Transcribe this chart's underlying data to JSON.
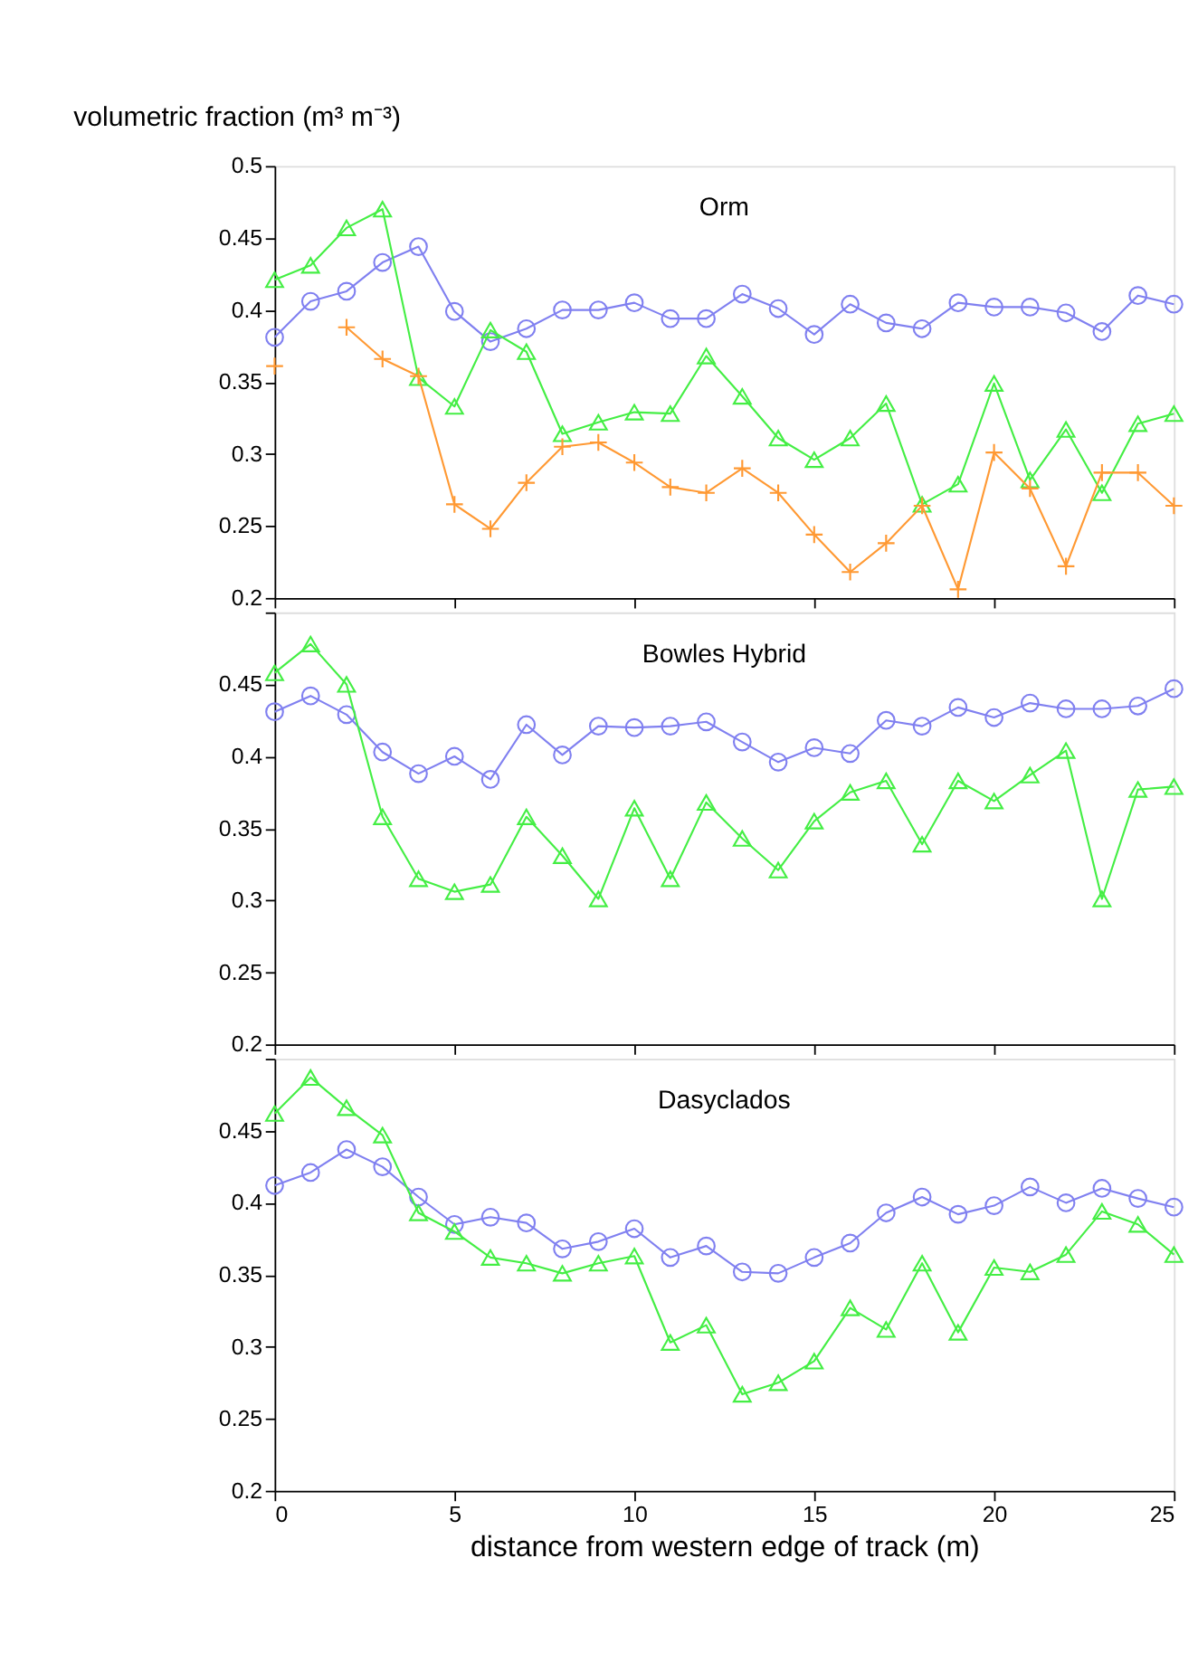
{
  "chart_data": [
    {
      "type": "line",
      "title": "Orm",
      "ylabel": "volumetric fraction (m³ m⁻³)",
      "x": [
        0,
        1,
        2,
        3,
        4,
        5,
        6,
        7,
        8,
        9,
        10,
        11,
        12,
        13,
        14,
        15,
        16,
        17,
        18,
        19,
        20,
        21,
        22,
        23,
        24,
        25
      ],
      "xlim": [
        0,
        25
      ],
      "xticks": [
        0,
        5,
        10,
        15,
        20,
        25
      ],
      "ylim": [
        0.2,
        0.5
      ],
      "yticks": [
        0.2,
        0.25,
        0.3,
        0.35,
        0.4,
        0.45,
        0.5
      ],
      "tick_labels": "y",
      "grid": false,
      "line_style": "solid",
      "series": [
        {
          "color": "#8080f0",
          "marker": "circle",
          "values": [
            0.381,
            0.406,
            0.413,
            0.433,
            0.444,
            0.399,
            0.378,
            0.387,
            0.4,
            0.4,
            0.405,
            0.394,
            0.394,
            0.411,
            0.401,
            0.383,
            0.404,
            0.391,
            0.387,
            0.405,
            0.402,
            0.402,
            0.398,
            0.385,
            0.41,
            0.404
          ]
        },
        {
          "color": "#44ee44",
          "marker": "triangle",
          "values": [
            0.421,
            0.431,
            0.457,
            0.47,
            0.353,
            0.333,
            0.386,
            0.371,
            0.314,
            0.322,
            0.329,
            0.328,
            0.368,
            0.34,
            0.311,
            0.296,
            0.311,
            0.335,
            0.265,
            0.279,
            0.349,
            0.282,
            0.317,
            0.273,
            0.321,
            0.328
          ]
        },
        {
          "color": "#ff9933",
          "marker": "cross",
          "values": [
            0.361,
            null,
            0.388,
            0.366,
            0.354,
            0.265,
            0.248,
            0.28,
            0.305,
            0.308,
            0.294,
            0.277,
            0.273,
            0.29,
            0.273,
            0.244,
            0.218,
            0.238,
            0.264,
            0.206,
            0.301,
            0.276,
            0.222,
            0.287,
            0.287,
            0.264
          ]
        }
      ]
    },
    {
      "type": "line",
      "title": "Bowles Hybrid",
      "x": [
        0,
        1,
        2,
        3,
        4,
        5,
        6,
        7,
        8,
        9,
        10,
        11,
        12,
        13,
        14,
        15,
        16,
        17,
        18,
        19,
        20,
        21,
        22,
        23,
        24,
        25
      ],
      "xlim": [
        0,
        25
      ],
      "xticks": [
        0,
        5,
        10,
        15,
        20,
        25
      ],
      "ylim": [
        0.2,
        0.5
      ],
      "yticks": [
        0.2,
        0.25,
        0.3,
        0.35,
        0.4,
        0.45,
        {
          "value": 0.5,
          "label": null
        }
      ],
      "tick_labels": "y",
      "grid": false,
      "line_style": "solid",
      "series": [
        {
          "color": "#8080f0",
          "marker": "circle",
          "values": [
            0.431,
            0.442,
            0.429,
            0.403,
            0.388,
            0.4,
            0.384,
            0.422,
            0.401,
            0.421,
            0.42,
            0.421,
            0.424,
            0.41,
            0.396,
            0.406,
            0.402,
            0.425,
            0.421,
            0.434,
            0.427,
            0.437,
            0.433,
            0.433,
            0.435,
            0.447
          ]
        },
        {
          "color": "#44ee44",
          "marker": "triangle",
          "values": [
            0.458,
            0.478,
            0.45,
            0.358,
            0.315,
            0.306,
            0.311,
            0.358,
            0.331,
            0.301,
            0.364,
            0.315,
            0.368,
            0.343,
            0.321,
            0.355,
            0.375,
            0.383,
            0.339,
            0.383,
            0.369,
            0.387,
            0.404,
            0.301,
            0.377,
            0.379
          ]
        }
      ]
    },
    {
      "type": "line",
      "title": "Dasyclados",
      "xlabel": "distance from western edge of track (m)",
      "x": [
        0,
        1,
        2,
        3,
        4,
        5,
        6,
        7,
        8,
        9,
        10,
        11,
        12,
        13,
        14,
        15,
        16,
        17,
        18,
        19,
        20,
        21,
        22,
        23,
        24,
        25
      ],
      "xlim": [
        0,
        25
      ],
      "xticks": [
        0,
        5,
        10,
        15,
        20,
        25
      ],
      "ylim": [
        0.2,
        0.5
      ],
      "yticks": [
        0.2,
        0.25,
        0.3,
        0.35,
        0.4,
        0.45,
        {
          "value": 0.5,
          "label": null
        }
      ],
      "grid": false,
      "line_style": "solid",
      "series": [
        {
          "color": "#8080f0",
          "marker": "circle",
          "values": [
            0.412,
            0.421,
            0.437,
            0.425,
            0.404,
            0.385,
            0.39,
            0.386,
            0.368,
            0.373,
            0.382,
            0.362,
            0.37,
            0.352,
            0.351,
            0.362,
            0.372,
            0.393,
            0.404,
            0.392,
            0.398,
            0.411,
            0.4,
            0.41,
            0.403,
            0.397
          ]
        },
        {
          "color": "#44ee44",
          "marker": "triangle",
          "values": [
            0.462,
            0.487,
            0.466,
            0.447,
            0.393,
            0.38,
            0.362,
            0.358,
            0.351,
            0.358,
            0.363,
            0.303,
            0.315,
            0.267,
            0.275,
            0.29,
            0.327,
            0.312,
            0.358,
            0.31,
            0.355,
            0.352,
            0.364,
            0.394,
            0.385,
            0.364
          ]
        }
      ]
    }
  ]
}
